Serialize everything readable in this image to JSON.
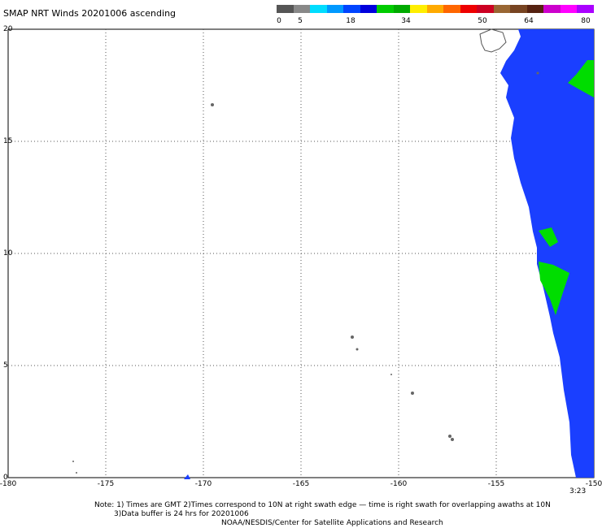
{
  "title": "SMAP NRT Winds 20201006 ascending",
  "colorbar": {
    "labels": [
      "0",
      "5",
      "18",
      "34",
      "50",
      "64",
      "80"
    ],
    "colors": [
      "#555555",
      "#888888",
      "#00ddff",
      "#0099ff",
      "#0044ff",
      "#0000dd",
      "#00cc00",
      "#00aa00",
      "#ffee00",
      "#ffaa00",
      "#ff6600",
      "#ee0000",
      "#cc0022",
      "#996633",
      "#774422",
      "#552211",
      "#cc00cc",
      "#ff00ff",
      "#aa00ff"
    ]
  },
  "axes": {
    "x_ticks": [
      "-180",
      "-175",
      "-170",
      "-165",
      "-160",
      "-155",
      "-150"
    ],
    "y_ticks": [
      "20",
      "15",
      "10",
      "5",
      "0"
    ]
  },
  "swath_time": "3:23",
  "notes": {
    "line1": "Note: 1) Times are GMT 2)Times correspond to 10N at right swath edge — time is right swath for overlapping awaths at 10N",
    "line2": "3)Data buffer is 24 hrs for 20201006",
    "line3": "NOAA/NESDIS/Center for Satellite Applications and Research"
  },
  "colors": {
    "land": "#666666",
    "wind_low": "#1a3fff",
    "wind_high": "#00dd00",
    "grid": "#555555"
  }
}
